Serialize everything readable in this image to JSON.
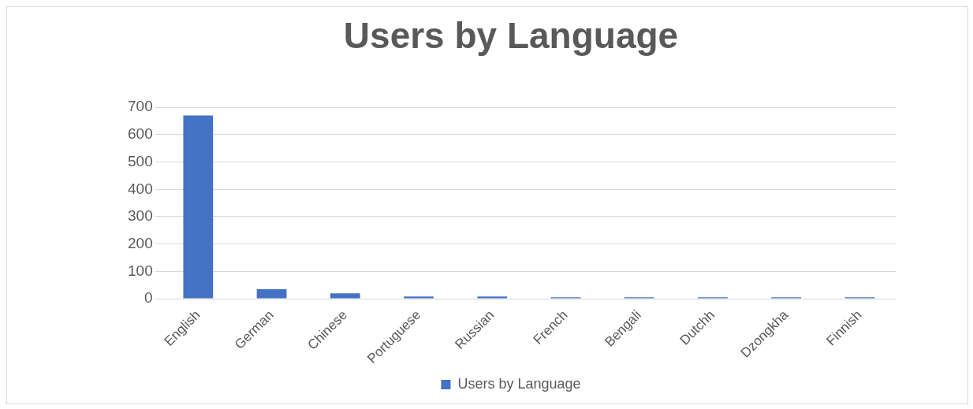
{
  "chart_data": {
    "type": "bar",
    "title": "Users by Language",
    "categories": [
      "English",
      "German",
      "Chinese",
      "Portuguese",
      "Russian",
      "French",
      "Bengali",
      "Dutchh",
      "Dzongkha",
      "Finnish"
    ],
    "series": [
      {
        "name": "Users by Language",
        "color": "#4472c4",
        "values": [
          670,
          35,
          20,
          8,
          8,
          5,
          5,
          5,
          5,
          5
        ]
      }
    ],
    "ylim": [
      0,
      700
    ],
    "yticks": [
      0,
      100,
      200,
      300,
      400,
      500,
      600,
      700
    ],
    "grid": "y",
    "legend": "bottom"
  }
}
